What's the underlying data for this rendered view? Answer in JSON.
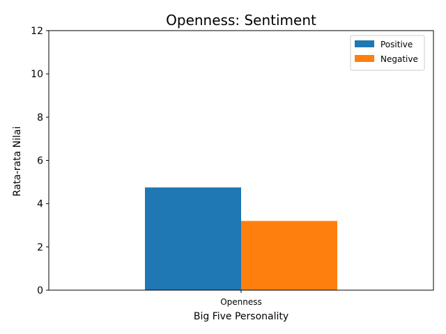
{
  "chart_data": {
    "type": "bar",
    "title": "Openness: Sentiment",
    "xlabel": "Big Five Personality",
    "ylabel": "Rata-rata Nilai",
    "categories": [
      "Openness"
    ],
    "series": [
      {
        "name": "Positive",
        "values": [
          4.75
        ],
        "color": "#1f77b4"
      },
      {
        "name": "Negative",
        "values": [
          3.2
        ],
        "color": "#ff7f0e"
      }
    ],
    "ylim": [
      0,
      12
    ],
    "yticks": [
      0,
      2,
      4,
      6,
      8,
      10,
      12
    ],
    "grid": false,
    "legend_position": "top-right"
  }
}
